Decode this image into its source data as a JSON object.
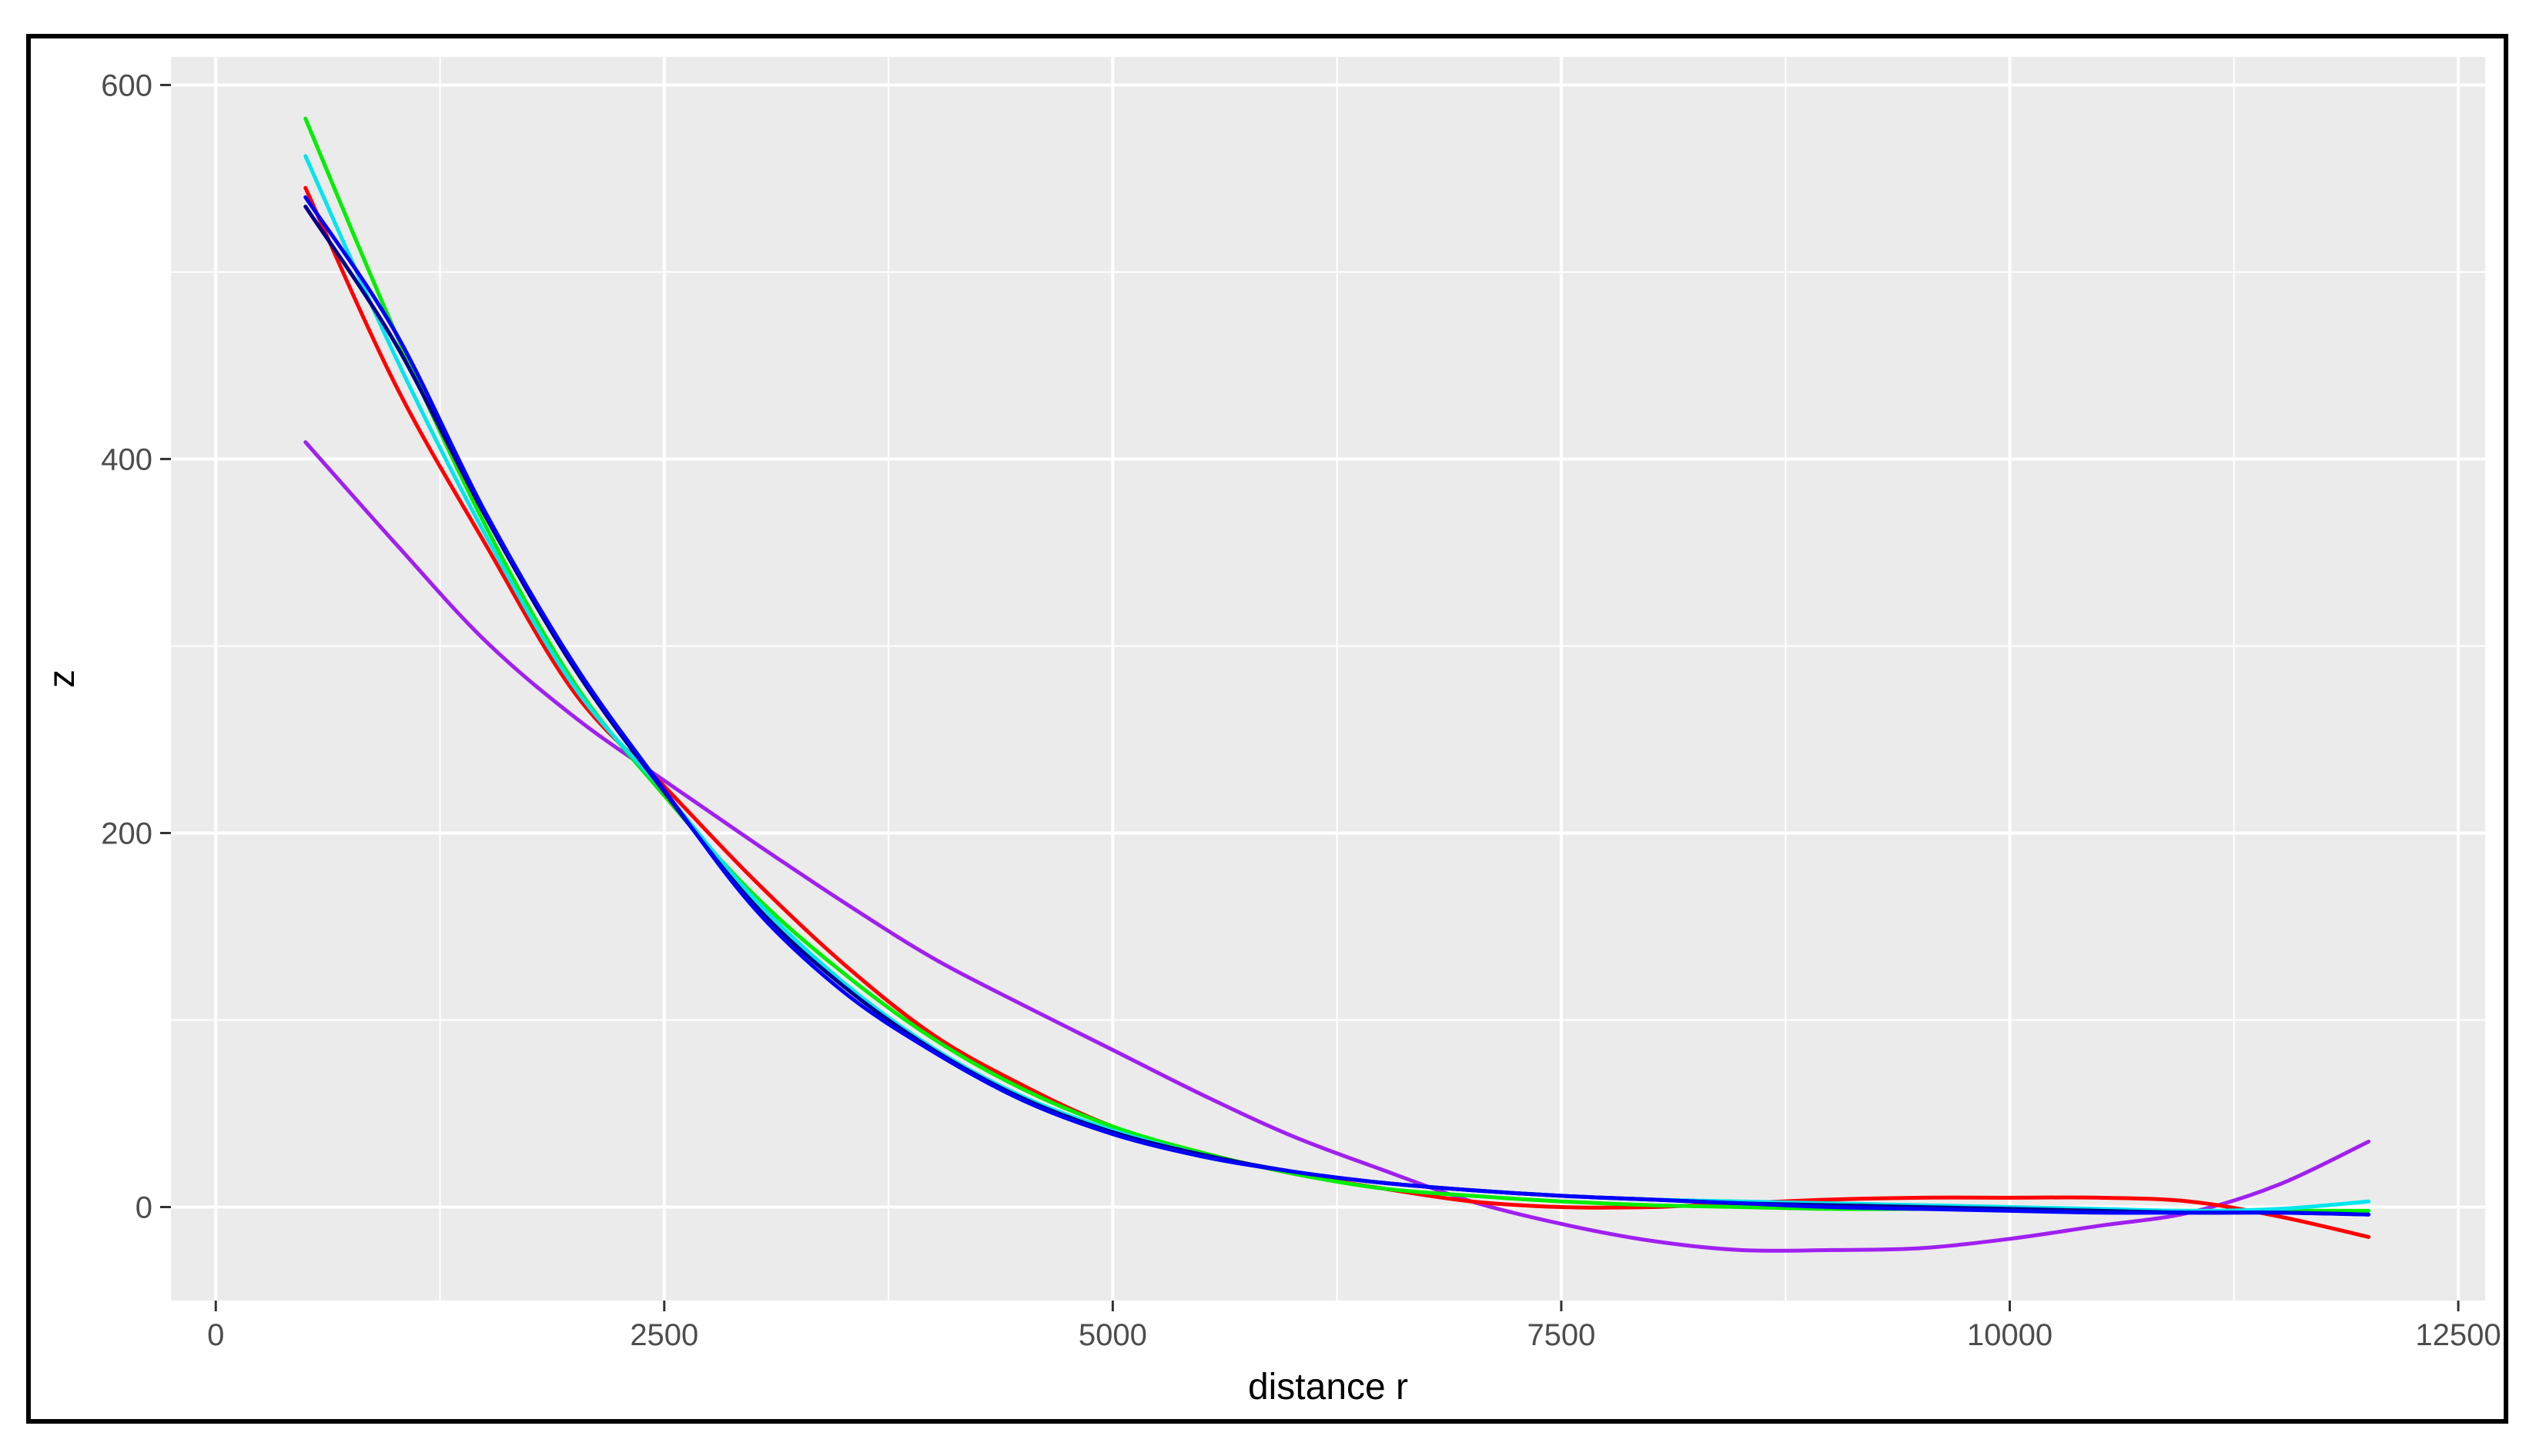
{
  "chart_data": {
    "type": "line",
    "title": "",
    "xlabel": "distance r",
    "ylabel": "z",
    "xlim": [
      -250,
      12650
    ],
    "ylim": [
      -50,
      615
    ],
    "x_ticks": [
      0,
      2500,
      5000,
      7500,
      10000,
      12500
    ],
    "x_tick_labels": [
      "0",
      "2500",
      "5000",
      "7500",
      "10000",
      "12500"
    ],
    "y_ticks": [
      0,
      200,
      400,
      600
    ],
    "y_tick_labels": [
      "0",
      "200",
      "400",
      "600"
    ],
    "grid": true,
    "legend": "none",
    "panel_background": "#ebebeb",
    "grid_color": "#ffffff",
    "series": [
      {
        "color": "#a020f0",
        "x": [
          500,
          1000,
          1500,
          2000,
          2500,
          3000,
          3500,
          4000,
          4500,
          5000,
          5500,
          6000,
          6500,
          7000,
          7500,
          8000,
          8500,
          9000,
          9500,
          10000,
          10500,
          11000,
          11500,
          12000
        ],
        "y": [
          409,
          355,
          303,
          262,
          228,
          195,
          163,
          133,
          108,
          84,
          60,
          38,
          20,
          3,
          -9,
          -18,
          -23,
          -23,
          -22,
          -17,
          -10,
          -3,
          12,
          35
        ]
      },
      {
        "color": "#ff0000",
        "x": [
          500,
          1000,
          1500,
          2000,
          2500,
          3000,
          3500,
          4000,
          4500,
          5000,
          5500,
          6000,
          6500,
          7000,
          7500,
          8000,
          8500,
          9000,
          9500,
          10000,
          10500,
          11000,
          11500,
          12000
        ],
        "y": [
          545,
          440,
          355,
          275,
          225,
          175,
          130,
          92,
          65,
          43,
          29,
          18,
          10,
          3,
          0,
          0,
          2,
          4,
          5,
          5,
          5,
          3,
          -5,
          -16
        ]
      },
      {
        "color": "#00ee00",
        "x": [
          500,
          1000,
          1500,
          2000,
          2500,
          3000,
          3500,
          4000,
          4500,
          5000,
          5500,
          6000,
          6500,
          7000,
          7500,
          8000,
          8500,
          9000,
          9500,
          10000,
          10500,
          11000,
          11500,
          12000
        ],
        "y": [
          582,
          468,
          365,
          280,
          220,
          167,
          125,
          90,
          63,
          43,
          29,
          18,
          10,
          6,
          3,
          1,
          0,
          -1,
          -1,
          -1,
          -2,
          -2,
          -2,
          -2
        ]
      },
      {
        "color": "#00e5ee",
        "x": [
          500,
          1000,
          1500,
          2000,
          2500,
          3000,
          3500,
          4000,
          4500,
          5000,
          5500,
          6000,
          6500,
          7000,
          7500,
          8000,
          8500,
          9000,
          9500,
          10000,
          10500,
          11000,
          11500,
          12000
        ],
        "y": [
          562,
          455,
          360,
          278,
          222,
          165,
          120,
          85,
          59,
          41,
          28,
          19,
          13,
          9,
          6,
          4,
          3,
          2,
          1,
          0,
          -1,
          -2,
          -1,
          3
        ]
      },
      {
        "color": "#00008b",
        "x": [
          500,
          1000,
          1500,
          2000,
          2500,
          3000,
          3500,
          4000,
          4500,
          5000,
          5500,
          6000,
          6500,
          7000,
          7500,
          8000,
          8500,
          9000,
          9500,
          10000,
          10500,
          11000,
          11500,
          12000
        ],
        "y": [
          535,
          462,
          370,
          288,
          222,
          162,
          118,
          84,
          58,
          40,
          28,
          19,
          13,
          9,
          6,
          4,
          2,
          1,
          0,
          -1,
          -2,
          -3,
          -3,
          -4
        ]
      },
      {
        "color": "#0000ff",
        "x": [
          500,
          1000,
          1500,
          2000,
          2500,
          3000,
          3500,
          4000,
          4500,
          5000,
          5500,
          6000,
          6500,
          7000,
          7500,
          8000,
          8500,
          9000,
          9500,
          10000,
          10500,
          11000,
          11500,
          12000
        ],
        "y": [
          540,
          468,
          372,
          290,
          223,
          160,
          115,
          83,
          57,
          39,
          27,
          19,
          13,
          9,
          6,
          4,
          2,
          0,
          -1,
          -2,
          -3,
          -3,
          -3,
          -4
        ]
      }
    ]
  }
}
